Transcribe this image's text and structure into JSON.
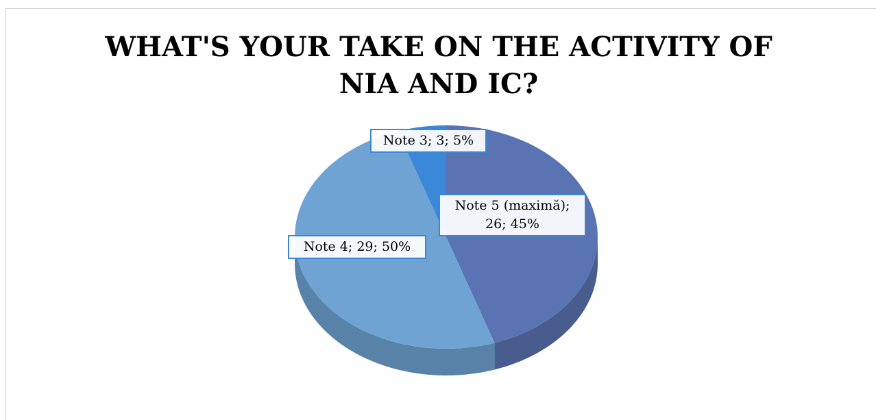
{
  "chart_data": {
    "type": "pie3d",
    "title": "WHAT'S YOUR TAKE ON THE ACTIVITY OF NIA AND IC?",
    "categories": [
      "Note 5 (maximă)",
      "Note 4",
      "Note 3"
    ],
    "values": [
      26,
      29,
      3
    ],
    "percentages": [
      45,
      50,
      5
    ],
    "value_labels": [
      "Note 5 (maximă); 26; 45%",
      "Note 4; 29; 50%",
      "Note 3; 3; 5%"
    ],
    "colors": [
      "#5a73b2",
      "#6fa3d3",
      "#3c88d8"
    ]
  }
}
